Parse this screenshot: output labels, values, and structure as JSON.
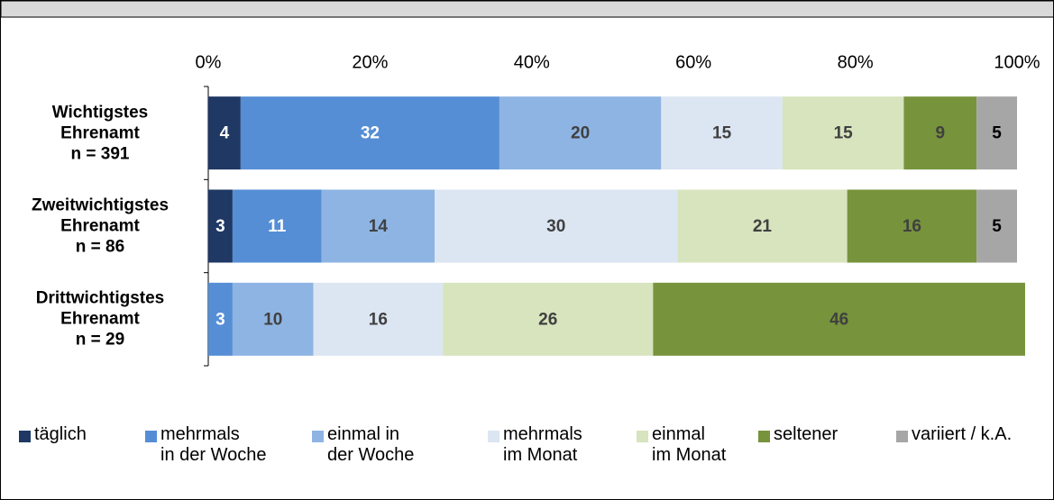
{
  "chart_data": {
    "type": "bar",
    "orientation": "horizontal",
    "stacked": true,
    "categories": [
      "Wichtigstes\nEhrenamt\nn = 391",
      "Zweitwichtigstes\nEhrenamt\nn = 86",
      "Drittwichtigstes\nEhrenamt\nn = 29"
    ],
    "series": [
      {
        "name": "täglich",
        "color": "#1f3864",
        "values": [
          4,
          3,
          null
        ]
      },
      {
        "name": "mehrmals\nin der Woche",
        "color": "#558ed5",
        "values": [
          32,
          11,
          3
        ]
      },
      {
        "name": "einmal in\nder Woche",
        "color": "#8eb4e3",
        "values": [
          20,
          14,
          10
        ]
      },
      {
        "name": "mehrmals\nim Monat",
        "color": "#dce6f2",
        "values": [
          15,
          30,
          16
        ]
      },
      {
        "name": "einmal\nim Monat",
        "color": "#d7e4bd",
        "values": [
          15,
          21,
          26
        ]
      },
      {
        "name": "seltener",
        "color": "#77933c",
        "values": [
          9,
          16,
          46
        ]
      },
      {
        "name": "variiert / k.A.",
        "color": "#a6a6a6",
        "values": [
          5,
          5,
          null
        ]
      }
    ],
    "xlim": [
      0,
      100
    ],
    "xticks": [
      {
        "value": 0,
        "label": "0%"
      },
      {
        "value": 20,
        "label": "20%"
      },
      {
        "value": 40,
        "label": "40%"
      },
      {
        "value": 60,
        "label": "60%"
      },
      {
        "value": 80,
        "label": "80%"
      },
      {
        "value": 100,
        "label": "100%"
      }
    ],
    "legend": "bottom"
  }
}
